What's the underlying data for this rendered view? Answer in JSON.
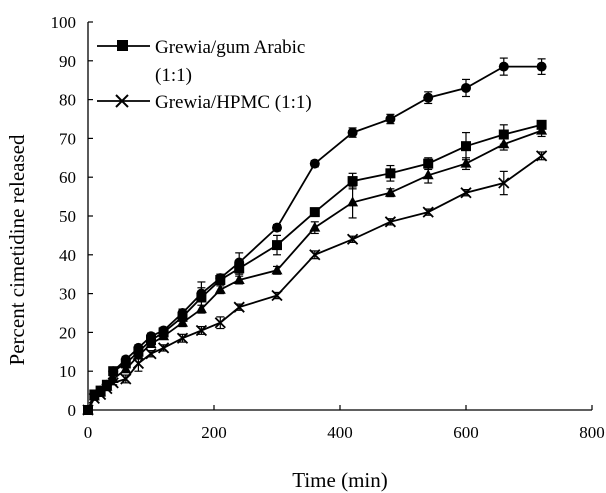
{
  "chart_data": {
    "type": "line",
    "xlabel": "Time (min)",
    "ylabel": "Percent cimetidine released",
    "xlim": [
      0,
      800
    ],
    "ylim": [
      0,
      100
    ],
    "xticks": [
      0,
      200,
      400,
      600,
      800
    ],
    "yticks": [
      0,
      10,
      20,
      30,
      40,
      50,
      60,
      70,
      80,
      90,
      100
    ],
    "xtick_labels": [
      "0",
      "200",
      "400",
      "600",
      "800"
    ],
    "ytick_labels": [
      "0",
      "10",
      "20",
      "30",
      "40",
      "50",
      "60",
      "70",
      "80",
      "90",
      "100"
    ],
    "grid": false,
    "legend_position": "top-left",
    "legend": [
      {
        "label_line1": "Grewia/gum Arabic",
        "label_line2": "(1:1)",
        "marker": "square"
      },
      {
        "label_line1": "Grewia/HPMC (1:1)",
        "label_line2": "",
        "marker": "x"
      }
    ],
    "series": [
      {
        "marker": "circle",
        "color": "#000000",
        "x": [
          0,
          10,
          20,
          30,
          40,
          60,
          80,
          100,
          120,
          150,
          180,
          210,
          240,
          300,
          360,
          420,
          480,
          540,
          600,
          660,
          720
        ],
        "y": [
          0,
          4,
          5,
          6.5,
          10,
          13,
          16,
          19,
          20.5,
          25,
          30,
          34,
          38,
          47,
          63.5,
          71.5,
          75,
          80.5,
          83,
          88.5,
          88.5
        ],
        "err": [
          0,
          0.5,
          0.5,
          0.5,
          0.5,
          0.8,
          0.8,
          0.8,
          0.8,
          1,
          1.5,
          1,
          2.5,
          0.8,
          0.8,
          1.2,
          1.2,
          1.5,
          2.2,
          2.2,
          2
        ]
      },
      {
        "marker": "square",
        "color": "#000000",
        "x": [
          0,
          10,
          20,
          30,
          40,
          60,
          80,
          100,
          120,
          150,
          180,
          210,
          240,
          300,
          360,
          420,
          480,
          540,
          600,
          660,
          720
        ],
        "y": [
          0,
          4,
          5,
          6.5,
          10,
          12,
          15,
          18,
          20,
          24,
          29,
          33.5,
          36.5,
          42.5,
          51,
          59,
          61,
          63.5,
          68,
          71,
          73.5
        ],
        "err": [
          0,
          0.5,
          0.5,
          0.5,
          0.5,
          0.8,
          0.8,
          0.8,
          1,
          2,
          4,
          1,
          1.5,
          2.5,
          1,
          2,
          2,
          1.5,
          3.5,
          2.5,
          1
        ]
      },
      {
        "marker": "triangle",
        "color": "#000000",
        "x": [
          0,
          10,
          20,
          30,
          40,
          60,
          80,
          100,
          120,
          150,
          180,
          210,
          240,
          300,
          360,
          420,
          480,
          540,
          600,
          660,
          720
        ],
        "y": [
          0,
          3.5,
          4.5,
          6,
          8,
          10.5,
          14,
          17,
          19,
          22.5,
          26,
          31,
          33.5,
          36,
          47,
          53.5,
          56,
          60.5,
          63.5,
          68.5,
          72
        ],
        "err": [
          0,
          0.5,
          0.5,
          0.5,
          0.5,
          0.8,
          0.8,
          0.8,
          0.8,
          1,
          1,
          1,
          1,
          1,
          1.5,
          4,
          1,
          2,
          1.5,
          1.5,
          1.5
        ]
      },
      {
        "marker": "x",
        "color": "#000000",
        "x": [
          0,
          10,
          20,
          30,
          40,
          60,
          80,
          100,
          120,
          150,
          180,
          210,
          240,
          300,
          360,
          420,
          480,
          540,
          600,
          660,
          720
        ],
        "y": [
          0,
          3,
          4,
          5.5,
          7,
          8,
          12,
          14.5,
          16,
          18.5,
          20.5,
          22.5,
          26.5,
          29.5,
          40,
          44,
          48.5,
          51,
          56,
          58.5,
          65.5
        ],
        "err": [
          0,
          0.5,
          0.5,
          0.5,
          0.5,
          1,
          2,
          0.8,
          0.8,
          1,
          1,
          1.5,
          0.8,
          0.8,
          1,
          0.8,
          0.8,
          0.8,
          0.8,
          3,
          1
        ]
      }
    ]
  }
}
